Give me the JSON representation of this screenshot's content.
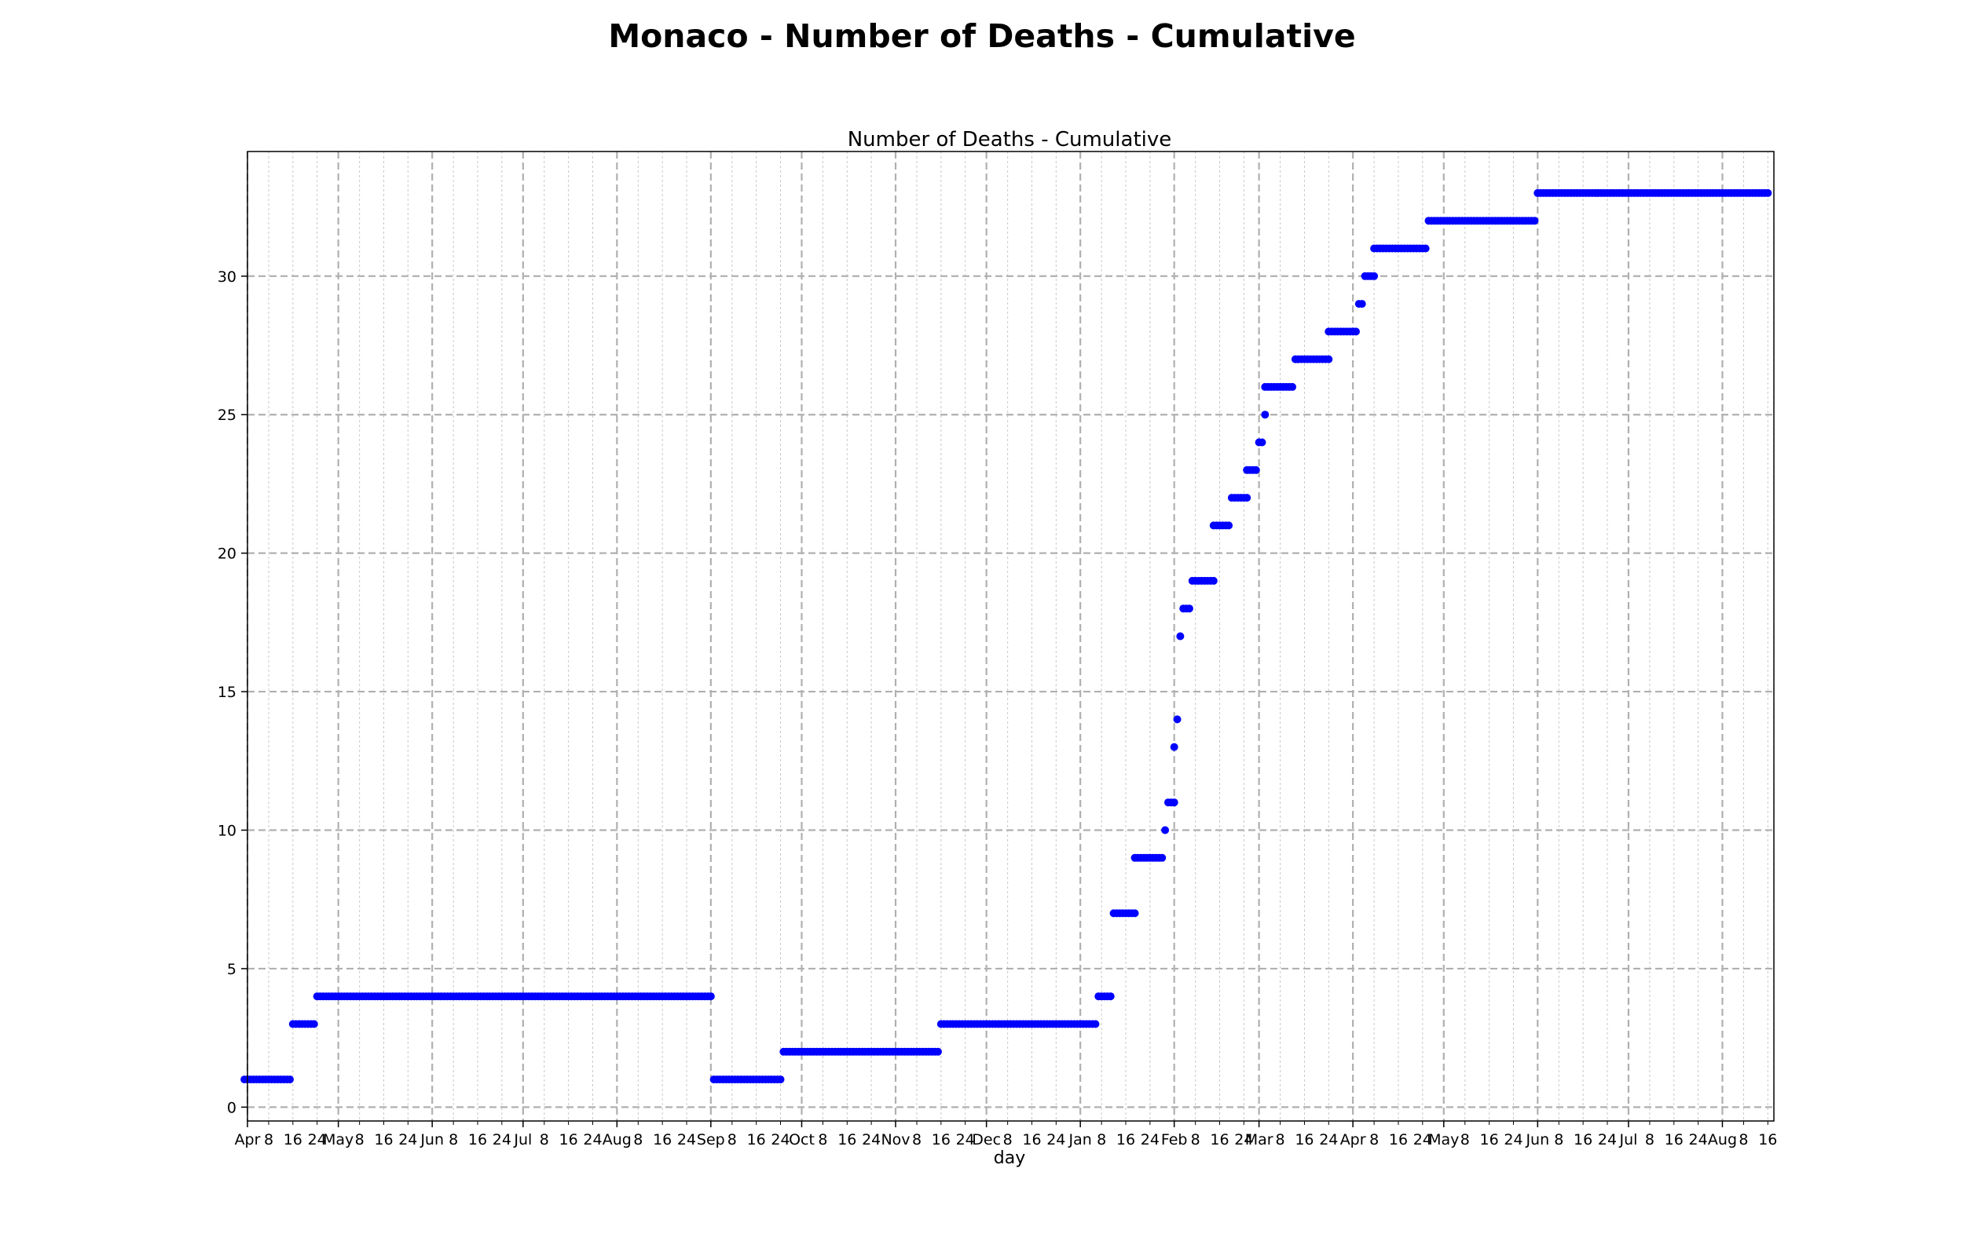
{
  "figure": {
    "suptitle": "Monaco - Number of Deaths - Cumulative"
  },
  "chart_data": {
    "type": "scatter",
    "title": "Number of Deaths - Cumulative",
    "xlabel": "day",
    "ylabel": "",
    "x_axis": "date",
    "xlim": [
      "2020-04-01",
      "2021-08-18"
    ],
    "ylim": [
      -0.5,
      34.5
    ],
    "yticks": [
      0,
      5,
      10,
      15,
      20,
      25,
      30
    ],
    "grid": {
      "major": true,
      "minor": true,
      "style": "dashed"
    },
    "legend": "none",
    "marker_color": "#0000ff",
    "xtick_months": [
      {
        "date": "2020-04-01",
        "label": "Apr"
      },
      {
        "date": "2020-05-01",
        "label": "May"
      },
      {
        "date": "2020-06-01",
        "label": "Jun"
      },
      {
        "date": "2020-07-01",
        "label": "Jul"
      },
      {
        "date": "2020-08-01",
        "label": "Aug"
      },
      {
        "date": "2020-09-01",
        "label": "Sep"
      },
      {
        "date": "2020-10-01",
        "label": "Oct"
      },
      {
        "date": "2020-11-01",
        "label": "Nov"
      },
      {
        "date": "2020-12-01",
        "label": "Dec"
      },
      {
        "date": "2021-01-01",
        "label": "Jan"
      },
      {
        "date": "2021-02-01",
        "label": "Feb"
      },
      {
        "date": "2021-03-01",
        "label": "Mar"
      },
      {
        "date": "2021-04-01",
        "label": "Apr"
      },
      {
        "date": "2021-05-01",
        "label": "May"
      },
      {
        "date": "2021-06-01",
        "label": "Jun"
      },
      {
        "date": "2021-07-01",
        "label": "Jul"
      },
      {
        "date": "2021-08-01",
        "label": "Aug"
      }
    ],
    "minor_tick_days": [
      8,
      16,
      24
    ],
    "series": [
      {
        "steps": [
          {
            "start": "2020-03-31",
            "end": "2020-04-15",
            "value": 1
          },
          {
            "start": "2020-04-16",
            "end": "2020-04-23",
            "value": 3
          },
          {
            "start": "2020-04-24",
            "end": "2020-09-01",
            "value": 4
          },
          {
            "start": "2020-09-02",
            "end": "2020-09-24",
            "value": 1
          },
          {
            "start": "2020-09-25",
            "end": "2020-11-15",
            "value": 2
          },
          {
            "start": "2020-11-16",
            "end": "2021-01-06",
            "value": 3
          },
          {
            "start": "2021-01-07",
            "end": "2021-01-11",
            "value": 4
          },
          {
            "start": "2021-01-12",
            "end": "2021-01-19",
            "value": 7
          },
          {
            "start": "2021-01-19",
            "end": "2021-01-28",
            "value": 9
          },
          {
            "start": "2021-01-29",
            "end": "2021-01-29",
            "value": 10
          },
          {
            "start": "2021-01-30",
            "end": "2021-02-01",
            "value": 11
          },
          {
            "start": "2021-02-01",
            "end": "2021-02-01",
            "value": 13
          },
          {
            "start": "2021-02-02",
            "end": "2021-02-02",
            "value": 14
          },
          {
            "start": "2021-02-03",
            "end": "2021-02-03",
            "value": 17
          },
          {
            "start": "2021-02-04",
            "end": "2021-02-06",
            "value": 18
          },
          {
            "start": "2021-02-07",
            "end": "2021-02-14",
            "value": 19
          },
          {
            "start": "2021-02-14",
            "end": "2021-02-19",
            "value": 21
          },
          {
            "start": "2021-02-20",
            "end": "2021-02-25",
            "value": 22
          },
          {
            "start": "2021-02-25",
            "end": "2021-02-28",
            "value": 23
          },
          {
            "start": "2021-03-01",
            "end": "2021-03-02",
            "value": 24
          },
          {
            "start": "2021-03-03",
            "end": "2021-03-03",
            "value": 25
          },
          {
            "start": "2021-03-03",
            "end": "2021-03-12",
            "value": 26
          },
          {
            "start": "2021-03-13",
            "end": "2021-03-24",
            "value": 27
          },
          {
            "start": "2021-03-24",
            "end": "2021-04-02",
            "value": 28
          },
          {
            "start": "2021-04-03",
            "end": "2021-04-04",
            "value": 29
          },
          {
            "start": "2021-04-05",
            "end": "2021-04-08",
            "value": 30
          },
          {
            "start": "2021-04-08",
            "end": "2021-04-25",
            "value": 31
          },
          {
            "start": "2021-04-26",
            "end": "2021-05-31",
            "value": 32
          },
          {
            "start": "2021-06-01",
            "end": "2021-08-16",
            "value": 33
          }
        ]
      }
    ]
  }
}
